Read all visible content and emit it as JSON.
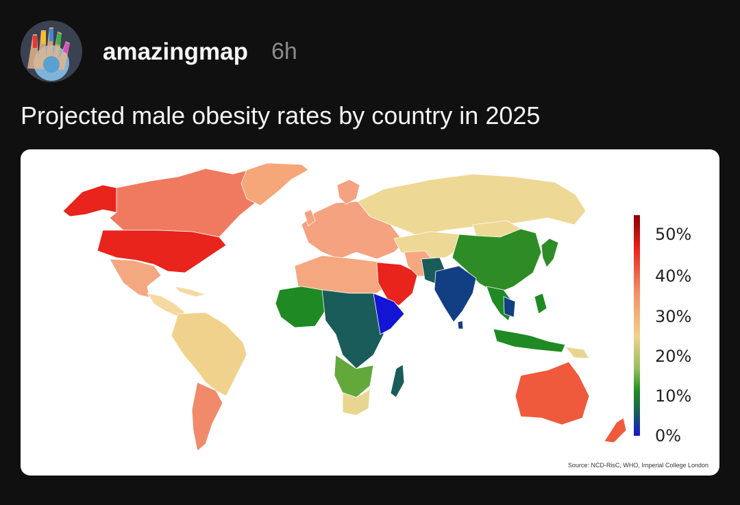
{
  "post": {
    "author": "amazingmap",
    "timestamp": "6h",
    "title": "Projected male obesity rates by country in 2025"
  },
  "map": {
    "source": "Source: NCD-RisC, WHO, Imperial College London",
    "legend": {
      "labels": [
        "50%",
        "40%",
        "30%",
        "20%",
        "10%",
        "0%"
      ],
      "colors": [
        "#8b0000",
        "#e8241c",
        "#f29065",
        "#f1d28c",
        "#8fbf5a",
        "#1f8a23",
        "#1a5c5a",
        "#1414d4"
      ]
    },
    "regions": {
      "north_america": "#f07a60",
      "usa": "#e8241c",
      "alaska": "#e8241c",
      "greenland": "#f5a77a",
      "mexico": "#f4a880",
      "central_america": "#f6d9a0",
      "south_america": "#f1d28c",
      "argentina": "#f08a6a",
      "europe": "#f4a27f",
      "russia": "#eed896",
      "north_africa": "#f5a880",
      "arabia": "#e8241c",
      "west_africa": "#1f8a23",
      "central_africa": "#1a5c5a",
      "east_africa": "#1414d4",
      "southern_africa": "#63a83a",
      "south_africa": "#e8d690",
      "madagascar": "#1a5c5a",
      "india": "#123f84",
      "china": "#2e8c26",
      "southeast_asia": "#1f8a23",
      "indonesia": "#1f8a23",
      "australia": "#f05a3c",
      "new_zealand": "#f05a3c"
    }
  }
}
